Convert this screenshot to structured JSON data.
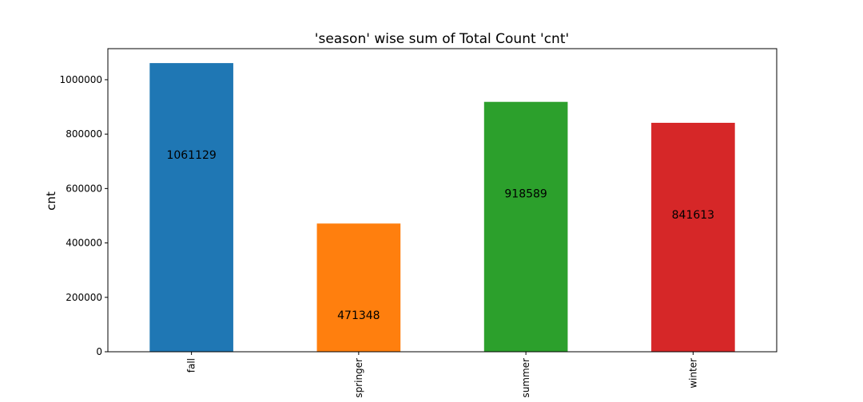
{
  "chart_data": {
    "type": "bar",
    "title": "'season' wise sum of Total Count 'cnt'",
    "xlabel": "",
    "ylabel": "cnt",
    "categories": [
      "fall",
      "springer",
      "summer",
      "winter"
    ],
    "values": [
      1061129,
      471348,
      918589,
      841613
    ],
    "data_labels": [
      "1061129",
      "471348",
      "918589",
      "841613"
    ],
    "colors": [
      "#1f77b4",
      "#ff7f0e",
      "#2ca02c",
      "#d62728"
    ],
    "ylim": [
      0,
      1114185
    ],
    "yticks": [
      0,
      200000,
      400000,
      600000,
      800000,
      1000000
    ],
    "ytick_labels": [
      "0",
      "200000",
      "400000",
      "600000",
      "800000",
      "1000000"
    ],
    "grid": false,
    "legend": "none"
  }
}
